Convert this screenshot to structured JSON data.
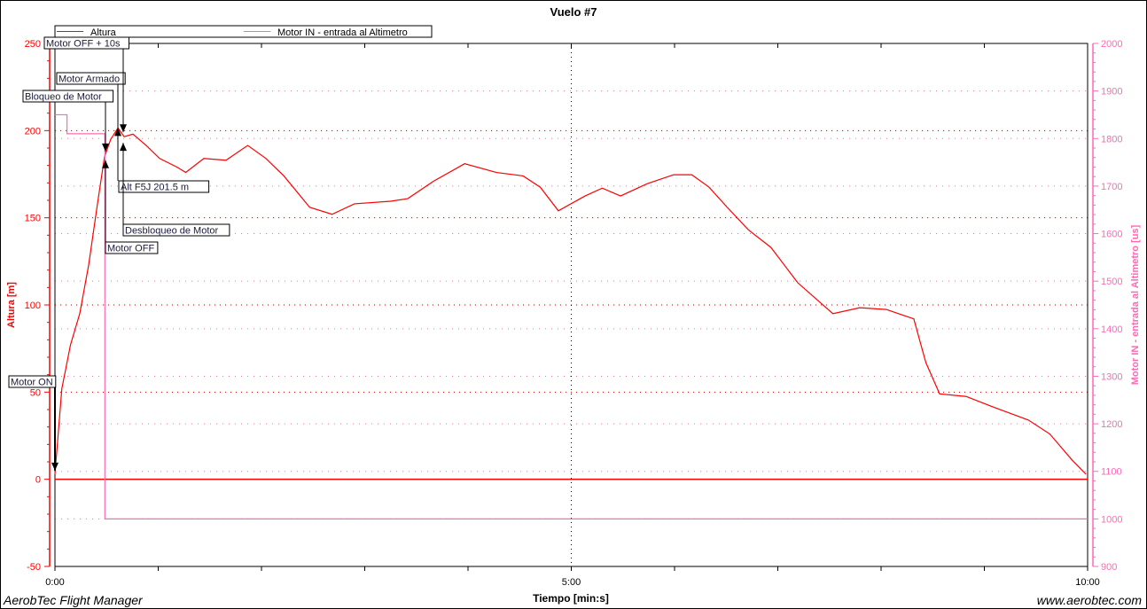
{
  "footer": {
    "left": "AerobTec Flight Manager",
    "right": "www.aerobtec.com"
  },
  "chart_data": {
    "type": "line",
    "title": "Vuelo #7",
    "xlabel": "Tiempo [min:s]",
    "ylabel": "Altura [m]",
    "y2label": "Motor IN - entrada al Altimetro [us]",
    "xlim": [
      0,
      600
    ],
    "x_ticks": [
      {
        "v": 0,
        "label": "0:00"
      },
      {
        "v": 300,
        "label": "5:00"
      },
      {
        "v": 600,
        "label": "10:00"
      }
    ],
    "ylim": [
      -50,
      250
    ],
    "y_ticks": [
      -50,
      0,
      50,
      100,
      150,
      200,
      250
    ],
    "y2lim": [
      900,
      2000
    ],
    "y2_ticks": [
      900,
      1000,
      1100,
      1200,
      1300,
      1400,
      1500,
      1600,
      1700,
      1800,
      1900,
      2000
    ],
    "grid": true,
    "legend_placement": "top",
    "colors": {
      "altura": "#ff0000",
      "motor_in": "#ff69b4",
      "axis_left": "#ff0000",
      "axis_right": "#ff69b4"
    },
    "series": [
      {
        "name": "Altura",
        "axis": "left",
        "color": "#ff0000",
        "x": [
          0,
          4,
          9,
          14.4,
          19.6,
          24.7,
          28.8,
          32.4,
          36.6,
          40.2,
          45.3,
          53,
          60.8,
          71,
          76,
          86.5,
          99.4,
          112,
          122.6,
          133,
          148,
          161,
          174,
          195,
          205,
          220,
          238,
          256.5,
          272,
          282,
          292.5,
          308,
          318,
          328.6,
          344,
          359.5,
          370,
          380,
          390.6,
          403,
          416,
          431.6,
          452,
          467.6,
          483,
          499,
          506,
          514,
          529.4,
          545,
          565.5,
          578,
          591,
          599
        ],
        "y": [
          3,
          52,
          77,
          95,
          123,
          158,
          185,
          195,
          201.5,
          196.5,
          198,
          191.5,
          184,
          179,
          176,
          184,
          183,
          191.5,
          184,
          174,
          156,
          152,
          158,
          159.5,
          161,
          171,
          181,
          176,
          174,
          167.5,
          154,
          162.5,
          167,
          162.5,
          169.5,
          174.7,
          174.7,
          167.6,
          156,
          143,
          133,
          112.7,
          95,
          98.4,
          97.4,
          92,
          67,
          49,
          47.5,
          41.5,
          34,
          26,
          11,
          3
        ]
      },
      {
        "name": "Motor IN - entrada al Altimetro",
        "axis": "right",
        "color": "#ff69b4",
        "x": [
          0,
          7,
          7,
          29,
          29,
          600
        ],
        "y": [
          1850,
          1850,
          1810,
          1810,
          1000,
          1000
        ]
      }
    ],
    "annotations": [
      {
        "label": "Motor ON",
        "t": 0,
        "alt": 5,
        "dir": "down"
      },
      {
        "label": "Bloqueo de Motor",
        "t": 29,
        "alt": 188,
        "dir": "down"
      },
      {
        "label": "Motor OFF",
        "t": 29,
        "alt": 183,
        "dir": "up"
      },
      {
        "label": "Motor Armado",
        "t": 36.6,
        "alt": 201.5,
        "dir": "up"
      },
      {
        "label": "Motor OFF + 10s",
        "t": 39.5,
        "alt": 199,
        "dir": "down"
      },
      {
        "label": "Alt F5J  201.5 m",
        "t": 36.6,
        "alt": 201.5,
        "dir": "none"
      },
      {
        "label": "Desbloqueo de Motor",
        "t": 39.5,
        "alt": 193,
        "dir": "up"
      }
    ]
  }
}
